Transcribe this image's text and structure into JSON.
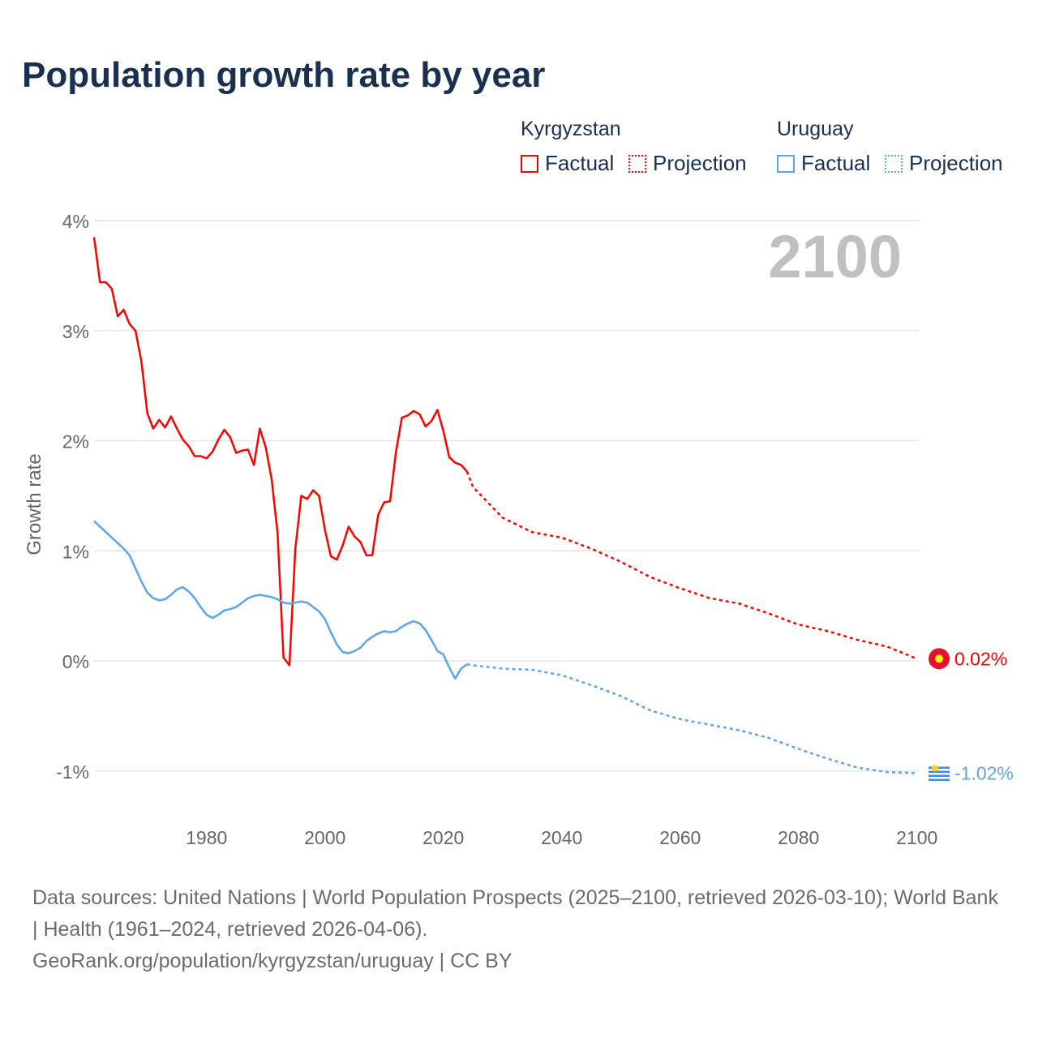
{
  "title": "Population growth rate by year",
  "legend": {
    "groups": [
      {
        "name": "Kyrgyzstan",
        "factual": "Factual",
        "projection": "Projection",
        "color": "#ff0000"
      },
      {
        "name": "Uruguay",
        "factual": "Factual",
        "projection": "Projection",
        "color": "#5aa5ec"
      }
    ]
  },
  "year_label": "2100",
  "footer": {
    "sources": "Data sources: United Nations | World Population Prospects (2025–2100, retrieved 2026-03-10); World Bank | Health (1961–2024, retrieved 2026-04-06).",
    "link": "GeoRank.org/population/kyrgyzstan/uruguay | CC BY"
  },
  "chart_data": {
    "type": "line",
    "title": "Population growth rate by year",
    "xlabel": "",
    "ylabel": "Growth rate",
    "xlim": [
      1961,
      2100
    ],
    "ylim": [
      -1.5,
      4.2
    ],
    "xticks": [
      1980,
      2000,
      2020,
      2040,
      2060,
      2080,
      2100
    ],
    "yticks": [
      {
        "v": 4,
        "label": "4%"
      },
      {
        "v": 3,
        "label": "3%"
      },
      {
        "v": 2,
        "label": "2%"
      },
      {
        "v": 1,
        "label": "1%"
      },
      {
        "v": 0,
        "label": "0%"
      },
      {
        "v": -1,
        "label": "-1%"
      }
    ],
    "grid": true,
    "series": [
      {
        "name": "Kyrgyzstan",
        "color": "#ff0000",
        "end_label": "0.02%",
        "factual": {
          "start": 1961,
          "values": [
            3.85,
            3.44,
            3.44,
            3.38,
            3.13,
            3.19,
            3.06,
            3.0,
            2.72,
            2.25,
            2.11,
            2.19,
            2.12,
            2.22,
            2.11,
            2.01,
            1.95,
            1.86,
            1.86,
            1.84,
            1.9,
            2.01,
            2.1,
            2.03,
            1.89,
            1.91,
            1.92,
            1.78,
            2.11,
            1.94,
            1.65,
            1.16,
            0.03,
            -0.04,
            1.02,
            1.5,
            1.47,
            1.55,
            1.5,
            1.19,
            0.95,
            0.92,
            1.05,
            1.22,
            1.13,
            1.08,
            0.96,
            0.96,
            1.33,
            1.44,
            1.45,
            1.9,
            2.21,
            2.23,
            2.27,
            2.24,
            2.13,
            2.18,
            2.28,
            2.09,
            1.85,
            1.8,
            1.78,
            1.72
          ]
        },
        "projection": {
          "x": [
            2024,
            2025,
            2030,
            2035,
            2040,
            2045,
            2050,
            2055,
            2060,
            2065,
            2070,
            2075,
            2080,
            2085,
            2090,
            2095,
            2100
          ],
          "values": [
            1.72,
            1.58,
            1.3,
            1.17,
            1.12,
            1.02,
            0.9,
            0.76,
            0.66,
            0.57,
            0.52,
            0.43,
            0.33,
            0.27,
            0.19,
            0.13,
            0.02
          ]
        }
      },
      {
        "name": "Uruguay",
        "color": "#5aa5ec",
        "end_label": "-1.02%",
        "factual": {
          "start": 1961,
          "values": [
            1.27,
            1.22,
            1.17,
            1.12,
            1.07,
            1.02,
            0.96,
            0.84,
            0.72,
            0.62,
            0.57,
            0.55,
            0.56,
            0.6,
            0.65,
            0.67,
            0.63,
            0.57,
            0.49,
            0.42,
            0.39,
            0.42,
            0.46,
            0.47,
            0.49,
            0.53,
            0.57,
            0.59,
            0.6,
            0.59,
            0.58,
            0.56,
            0.53,
            0.52,
            0.53,
            0.54,
            0.53,
            0.49,
            0.45,
            0.38,
            0.26,
            0.15,
            0.08,
            0.07,
            0.09,
            0.12,
            0.18,
            0.22,
            0.25,
            0.27,
            0.26,
            0.27,
            0.31,
            0.34,
            0.36,
            0.34,
            0.28,
            0.19,
            0.09,
            0.06,
            -0.06,
            -0.16,
            -0.07,
            -0.03
          ]
        },
        "projection": {
          "x": [
            2024,
            2025,
            2030,
            2035,
            2040,
            2045,
            2050,
            2055,
            2060,
            2065,
            2070,
            2075,
            2080,
            2085,
            2090,
            2095,
            2100
          ],
          "values": [
            -0.03,
            -0.04,
            -0.07,
            -0.08,
            -0.13,
            -0.22,
            -0.32,
            -0.45,
            -0.53,
            -0.58,
            -0.63,
            -0.7,
            -0.8,
            -0.89,
            -0.97,
            -1.01,
            -1.02
          ]
        }
      }
    ]
  }
}
